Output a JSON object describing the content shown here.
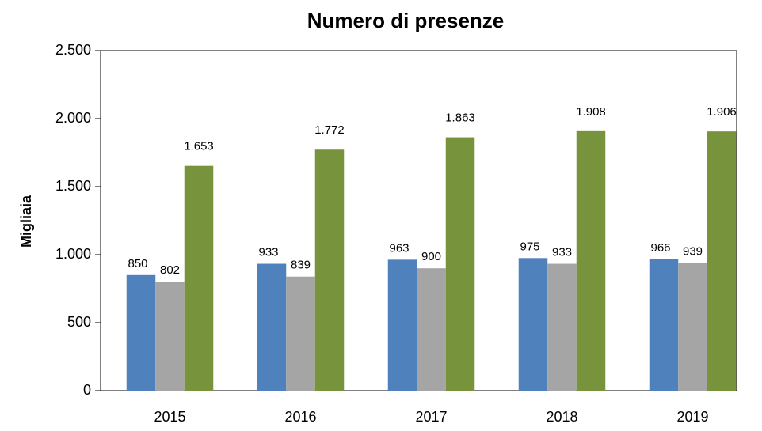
{
  "chart_data": {
    "type": "bar",
    "title": "Numero di presenze",
    "y_label": "Migliaia",
    "categories": [
      "2015",
      "2016",
      "2017",
      "2018",
      "2019"
    ],
    "series": [
      {
        "color": "#4f81bd",
        "values": [
          850,
          933,
          963,
          975,
          966
        ]
      },
      {
        "color": "#a5a5a5",
        "values": [
          802,
          839,
          900,
          933,
          939
        ]
      },
      {
        "color": "#77933c",
        "values": [
          1653,
          1772,
          1863,
          1908,
          1906
        ],
        "value_labels": [
          "1.653",
          "1.772",
          "1.863",
          "1.908",
          "1.906"
        ]
      }
    ],
    "ylim": [
      0,
      2500
    ],
    "yticks": [
      0,
      500,
      {
        "value": 1000,
        "label": "1.000"
      },
      {
        "value": 1500,
        "label": "1.500"
      },
      {
        "value": 2000,
        "label": "2.000"
      },
      {
        "value": 2500,
        "label": "2.500"
      }
    ],
    "grid": false
  }
}
